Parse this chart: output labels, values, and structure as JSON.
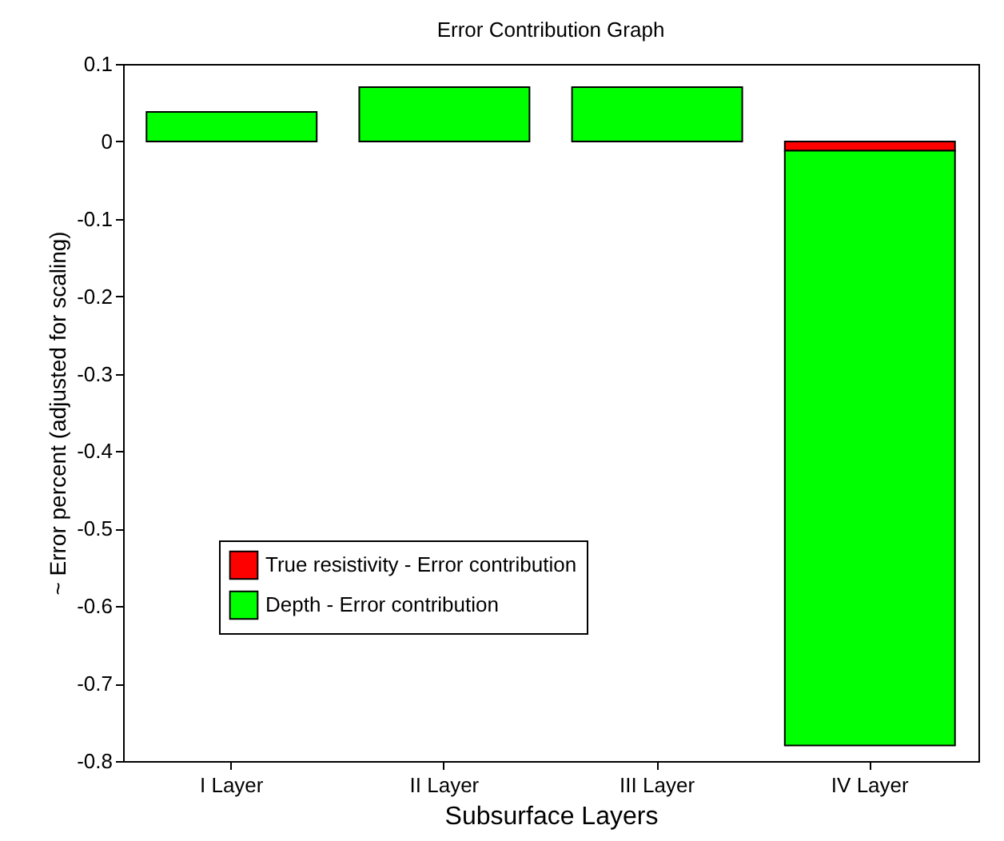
{
  "chart_data": {
    "type": "bar",
    "title": "Error Contribution Graph",
    "xlabel": "Subsurface Layers",
    "ylabel": "~ Error percent (adjusted for scaling)",
    "categories": [
      "I Layer",
      "II Layer",
      "III Layer",
      "IV Layer"
    ],
    "series": [
      {
        "name": "True resistivity - Error contribution",
        "color": "#ff0000",
        "values": [
          null,
          null,
          null,
          -0.012
        ]
      },
      {
        "name": "Depth - Error contribution",
        "color": "#00ff00",
        "values": [
          0.038,
          0.07,
          0.07,
          -0.768
        ]
      }
    ],
    "stacked": true,
    "ylim": [
      -0.8,
      0.1
    ],
    "yticks": [
      -0.8,
      -0.7,
      -0.6,
      -0.5,
      -0.4,
      -0.3,
      -0.2,
      -0.1,
      0,
      0.1
    ],
    "grid": false,
    "legend": "bottom left"
  }
}
